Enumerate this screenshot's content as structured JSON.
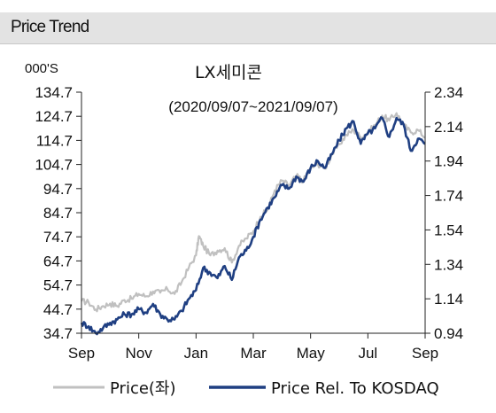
{
  "header": {
    "title": "Price Trend"
  },
  "chart_data": {
    "type": "line",
    "title": "LX세미콘",
    "subtitle": "(2020/09/07~2021/09/07)",
    "left_axis": {
      "unit": "000'S",
      "ylim": [
        34.7,
        134.7
      ],
      "ticks": [
        "134.7",
        "124.7",
        "114.7",
        "104.7",
        "94.7",
        "84.7",
        "74.7",
        "64.7",
        "54.7",
        "44.7",
        "34.7"
      ]
    },
    "right_axis": {
      "ylim": [
        0.94,
        2.34
      ],
      "ticks": [
        "2.34",
        "2.14",
        "1.94",
        "1.74",
        "1.54",
        "1.34",
        "1.14",
        "0.94"
      ]
    },
    "x_axis": {
      "ticks": [
        "Sep",
        "Nov",
        "Jan",
        "Mar",
        "May",
        "Jul",
        "Sep"
      ],
      "xlim": [
        0,
        12
      ]
    },
    "legend": {
      "placement": "bottom"
    },
    "series": [
      {
        "name": "Price(좌)",
        "axis": "left",
        "color": "#c0c0c0",
        "points": [
          [
            0,
            48
          ],
          [
            0.25,
            47.5
          ],
          [
            0.5,
            44.5
          ],
          [
            0.75,
            46
          ],
          [
            1,
            47
          ],
          [
            1.25,
            46
          ],
          [
            1.5,
            48.5
          ],
          [
            1.75,
            49
          ],
          [
            2,
            51
          ],
          [
            2.25,
            50
          ],
          [
            2.5,
            52
          ],
          [
            2.75,
            51.5
          ],
          [
            3,
            53
          ],
          [
            3.25,
            51
          ],
          [
            3.5,
            56
          ],
          [
            3.75,
            62
          ],
          [
            4,
            67
          ],
          [
            4.1,
            75
          ],
          [
            4.25,
            71
          ],
          [
            4.5,
            67
          ],
          [
            4.75,
            69
          ],
          [
            5,
            70
          ],
          [
            5.25,
            64
          ],
          [
            5.5,
            71
          ],
          [
            5.75,
            74
          ],
          [
            6,
            77
          ],
          [
            6.25,
            83
          ],
          [
            6.5,
            86
          ],
          [
            6.75,
            94
          ],
          [
            7,
            98
          ],
          [
            7.25,
            96
          ],
          [
            7.5,
            100
          ],
          [
            7.75,
            98
          ],
          [
            8,
            103
          ],
          [
            8.25,
            105
          ],
          [
            8.5,
            103
          ],
          [
            8.75,
            109
          ],
          [
            9,
            113
          ],
          [
            9.25,
            117
          ],
          [
            9.5,
            119
          ],
          [
            9.75,
            116
          ],
          [
            10,
            118
          ],
          [
            10.25,
            121
          ],
          [
            10.5,
            125
          ],
          [
            10.75,
            123
          ],
          [
            11,
            126
          ],
          [
            11.25,
            121
          ],
          [
            11.5,
            118
          ],
          [
            11.75,
            119
          ],
          [
            12,
            116
          ]
        ]
      },
      {
        "name": "Price Rel. To KOSDAQ",
        "axis": "right",
        "color": "#1f3f82",
        "points": [
          [
            0,
            1.0
          ],
          [
            0.25,
            0.98
          ],
          [
            0.5,
            0.94
          ],
          [
            0.75,
            0.97
          ],
          [
            1,
            1.0
          ],
          [
            1.25,
            1.02
          ],
          [
            1.5,
            1.05
          ],
          [
            1.75,
            1.05
          ],
          [
            2,
            1.08
          ],
          [
            2.25,
            1.06
          ],
          [
            2.5,
            1.11
          ],
          [
            2.75,
            1.05
          ],
          [
            3,
            1.02
          ],
          [
            3.25,
            1.02
          ],
          [
            3.5,
            1.07
          ],
          [
            3.75,
            1.14
          ],
          [
            4,
            1.19
          ],
          [
            4.25,
            1.32
          ],
          [
            4.5,
            1.29
          ],
          [
            4.75,
            1.26
          ],
          [
            5,
            1.33
          ],
          [
            5.25,
            1.25
          ],
          [
            5.5,
            1.38
          ],
          [
            5.75,
            1.42
          ],
          [
            6,
            1.5
          ],
          [
            6.25,
            1.6
          ],
          [
            6.5,
            1.67
          ],
          [
            6.75,
            1.73
          ],
          [
            7,
            1.8
          ],
          [
            7.25,
            1.78
          ],
          [
            7.5,
            1.85
          ],
          [
            7.75,
            1.82
          ],
          [
            8,
            1.9
          ],
          [
            8.25,
            1.94
          ],
          [
            8.5,
            1.9
          ],
          [
            8.75,
            1.98
          ],
          [
            9,
            2.06
          ],
          [
            9.25,
            2.13
          ],
          [
            9.5,
            2.17
          ],
          [
            9.75,
            2.04
          ],
          [
            10,
            2.1
          ],
          [
            10.25,
            2.13
          ],
          [
            10.5,
            2.19
          ],
          [
            10.75,
            2.08
          ],
          [
            11,
            2.19
          ],
          [
            11.25,
            2.15
          ],
          [
            11.5,
            2.0
          ],
          [
            11.75,
            2.07
          ],
          [
            12,
            2.04
          ]
        ]
      }
    ]
  }
}
